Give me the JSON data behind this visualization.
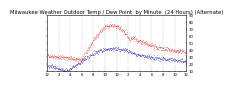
{
  "title": "Milwaukee Weather Outdoor Temp / Dew Point  by Minute  (24 Hours) (Alternate)",
  "title_fontsize": 3.8,
  "background_color": "#ffffff",
  "temp_color": "#ff0000",
  "dew_color": "#0000cc",
  "ylim": [
    10,
    90
  ],
  "xlim": [
    0,
    1440
  ],
  "n_minutes": 1440,
  "grid_color": "#aaaaaa",
  "tick_fontsize": 2.8,
  "dot_size": 0.12,
  "step": 3
}
